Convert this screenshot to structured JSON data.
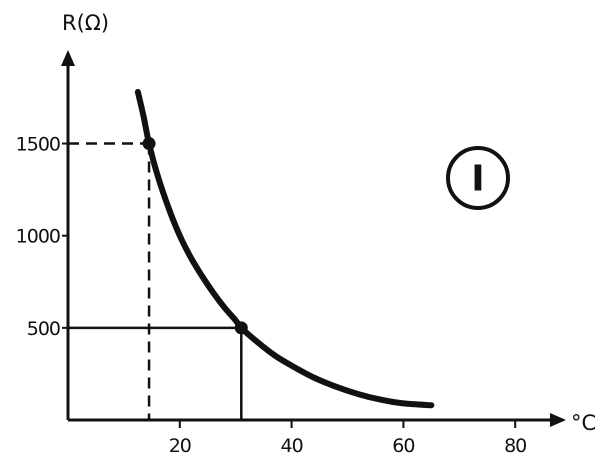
{
  "chart_data": {
    "type": "line",
    "title": "",
    "xlabel": "°C",
    "ylabel": "R(Ω)",
    "x_ticks": [
      20,
      40,
      60,
      80
    ],
    "y_ticks": [
      500,
      1000,
      1500
    ],
    "xlim": [
      0,
      85
    ],
    "ylim": [
      0,
      1850
    ],
    "grid": false,
    "legend": "none",
    "series": [
      {
        "x": [
          12.5,
          13.5,
          14.5,
          16,
          18,
          20,
          22,
          24,
          26,
          28,
          30,
          31,
          34,
          37,
          40,
          44,
          48,
          52,
          56,
          60,
          65
        ],
        "y": [
          1780,
          1650,
          1500,
          1330,
          1150,
          1000,
          880,
          780,
          690,
          610,
          540,
          500,
          420,
          350,
          295,
          230,
          180,
          140,
          110,
          90,
          80
        ]
      }
    ],
    "marked_points": [
      {
        "x": 14.5,
        "y": 1500,
        "guide": "dashed"
      },
      {
        "x": 31,
        "y": 500,
        "guide": "solid"
      }
    ],
    "annotation": "I",
    "colors": {
      "ink": "#111111",
      "background": "#ffffff"
    }
  }
}
